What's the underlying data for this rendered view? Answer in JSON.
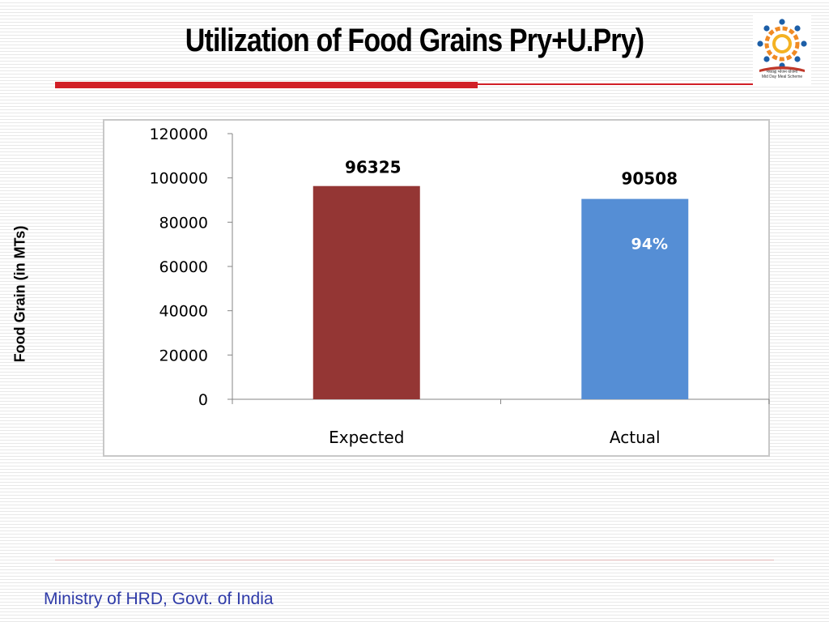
{
  "slide": {
    "title": "Utilization of Food Grains Pry+U.Pry)",
    "footer": "Ministry of HRD, Govt. of India",
    "logo_caption_1": "मध्याह्न भोजन योजना",
    "logo_caption_2": "Mid Day Meal Scheme",
    "logo_icon": "mid-day-meal-logo-icon"
  },
  "chart_data": {
    "type": "bar",
    "title": "",
    "xlabel": "",
    "ylabel": "Food Grain (in MTs)",
    "categories": [
      "Expected",
      "Actual"
    ],
    "values": [
      96325,
      90508
    ],
    "data_labels": [
      "96325",
      "90508"
    ],
    "colors": [
      "#943634",
      "#558ed5"
    ],
    "ylim": [
      0,
      120000
    ],
    "yticks": [
      0,
      20000,
      40000,
      60000,
      80000,
      100000,
      120000
    ],
    "annotation": "94%",
    "grid": false,
    "legend": "none"
  }
}
